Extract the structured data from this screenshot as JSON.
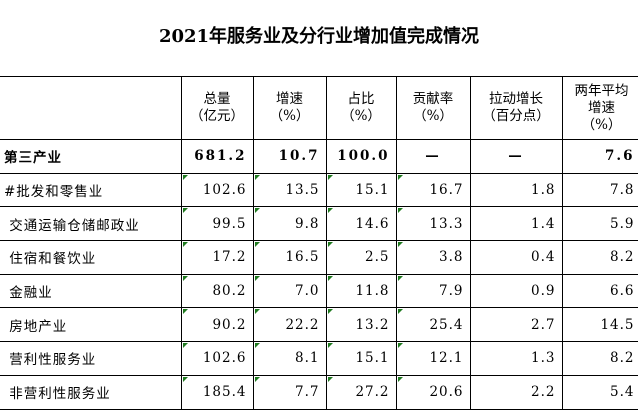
{
  "title": "2021年服务业及分行业增加值完成情况",
  "headers": [
    {
      "line1": "",
      "line2": "",
      "line3": ""
    },
    {
      "line1": "总量",
      "line2": "（亿元）",
      "line3": ""
    },
    {
      "line1": "增速",
      "line2": "（%）",
      "line3": ""
    },
    {
      "line1": "占比",
      "line2": "（%）",
      "line3": ""
    },
    {
      "line1": "贡献率",
      "line2": "（%）",
      "line3": ""
    },
    {
      "line1": "拉动增长",
      "line2": "（百分点）",
      "line3": ""
    },
    {
      "line1": "两年平均",
      "line2": "增速",
      "line3": "（%）"
    }
  ],
  "rows": [
    {
      "name": "第三产业",
      "total": "681.2",
      "growth": "10.7",
      "share": "100.0",
      "contribution": "—",
      "pull": "—",
      "avg2y": "7.6"
    },
    {
      "name": "#批发和零售业",
      "total": "102.6",
      "growth": "13.5",
      "share": "15.1",
      "contribution": "16.7",
      "pull": "1.8",
      "avg2y": "7.8"
    },
    {
      "name": " 交通运输仓储邮政业",
      "total": "99.5",
      "growth": "9.8",
      "share": "14.6",
      "contribution": "13.3",
      "pull": "1.4",
      "avg2y": "5.9"
    },
    {
      "name": " 住宿和餐饮业",
      "total": "17.2",
      "growth": "16.5",
      "share": "2.5",
      "contribution": "3.8",
      "pull": "0.4",
      "avg2y": "8.2"
    },
    {
      "name": " 金融业",
      "total": "80.2",
      "growth": "7.0",
      "share": "11.8",
      "contribution": "7.9",
      "pull": "0.9",
      "avg2y": "6.6"
    },
    {
      "name": " 房地产业",
      "total": "90.2",
      "growth": "22.2",
      "share": "13.2",
      "contribution": "25.4",
      "pull": "2.7",
      "avg2y": "14.5"
    },
    {
      "name": " 营利性服务业",
      "total": "102.6",
      "growth": "8.1",
      "share": "15.1",
      "contribution": "12.1",
      "pull": "1.3",
      "avg2y": "8.2"
    },
    {
      "name": " 非营利性服务业",
      "total": "185.4",
      "growth": "7.7",
      "share": "27.2",
      "contribution": "20.6",
      "pull": "2.2",
      "avg2y": "5.4"
    }
  ],
  "colors": {
    "cell_marker": "#1f7a1f",
    "border": "#000000"
  }
}
